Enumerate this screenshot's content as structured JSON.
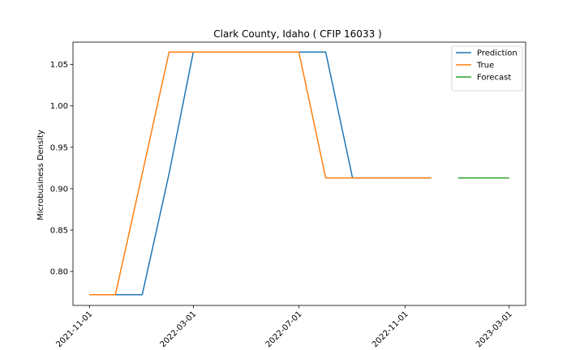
{
  "chart_data": {
    "type": "line",
    "title": "Clark County, Idaho ( CFIP 16033 )",
    "xlabel": "",
    "ylabel": "Microbusiness Density",
    "ylim": [
      0.759,
      1.077
    ],
    "xlim": [
      "2021-10-13",
      "2023-03-20"
    ],
    "x_ticks": [
      "2021-11-01",
      "2022-03-01",
      "2022-07-01",
      "2022-11-01",
      "2023-03-01"
    ],
    "y_ticks": [
      0.8,
      0.85,
      0.9,
      0.95,
      1.0,
      1.05
    ],
    "y_tick_labels": [
      "0.80",
      "0.85",
      "0.90",
      "0.95",
      "1.00",
      "1.05"
    ],
    "grid": false,
    "legend_position": "top-right",
    "series": [
      {
        "name": "Prediction",
        "color": "#1f77b4",
        "x": [
          "2021-11-01",
          "2021-12-01",
          "2022-01-01",
          "2022-02-01",
          "2022-03-01",
          "2022-04-01",
          "2022-05-01",
          "2022-06-01",
          "2022-07-01",
          "2022-08-01",
          "2022-09-01",
          "2022-10-01",
          "2022-11-01",
          "2022-12-01"
        ],
        "values": [
          0.772,
          0.772,
          0.772,
          0.918,
          1.065,
          1.065,
          1.065,
          1.065,
          1.065,
          1.065,
          0.913,
          0.913,
          0.913,
          0.913
        ]
      },
      {
        "name": "True",
        "color": "#ff7f0e",
        "x": [
          "2021-11-01",
          "2021-12-01",
          "2022-01-01",
          "2022-02-01",
          "2022-03-01",
          "2022-04-01",
          "2022-05-01",
          "2022-06-01",
          "2022-07-01",
          "2022-08-01",
          "2022-09-01",
          "2022-10-01",
          "2022-11-01",
          "2022-12-01"
        ],
        "values": [
          0.772,
          0.772,
          0.918,
          1.065,
          1.065,
          1.065,
          1.065,
          1.065,
          1.065,
          0.913,
          0.913,
          0.913,
          0.913,
          0.913
        ]
      },
      {
        "name": "Forecast",
        "color": "#2ca02c",
        "x": [
          "2023-01-01",
          "2023-02-01",
          "2023-03-01"
        ],
        "values": [
          0.913,
          0.913,
          0.913
        ]
      }
    ]
  }
}
